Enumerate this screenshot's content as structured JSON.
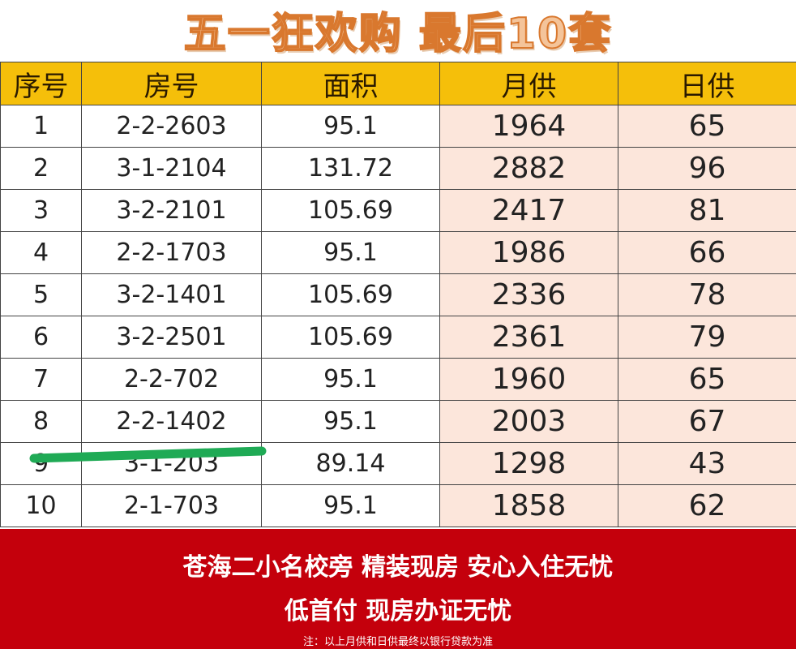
{
  "title": "五一狂欢购 最后10套",
  "table": {
    "headers": [
      "序号",
      "房号",
      "面积",
      "月供",
      "日供"
    ],
    "rows": [
      [
        "1",
        "2-2-2603",
        "95.1",
        "1964",
        "65"
      ],
      [
        "2",
        "3-1-2104",
        "131.72",
        "2882",
        "96"
      ],
      [
        "3",
        "3-2-2101",
        "105.69",
        "2417",
        "81"
      ],
      [
        "4",
        "2-2-1703",
        "95.1",
        "1986",
        "66"
      ],
      [
        "5",
        "3-2-1401",
        "105.69",
        "2336",
        "78"
      ],
      [
        "6",
        "3-2-2501",
        "105.69",
        "2361",
        "79"
      ],
      [
        "7",
        "2-2-702",
        "95.1",
        "1960",
        "65"
      ],
      [
        "8",
        "2-2-1402",
        "95.1",
        "2003",
        "67"
      ],
      [
        "9",
        "3-1-203",
        "89.14",
        "1298",
        "43"
      ],
      [
        "10",
        "2-1-703",
        "95.1",
        "1858",
        "62"
      ]
    ]
  },
  "footer": {
    "line1": "苍海二小名校旁 精装现房 安心入住无忧",
    "line2": "低首付 现房办证无忧",
    "note": "注：以上月供和日供最终以银行贷款为准"
  },
  "colors": {
    "header": "#f5bf0a",
    "footer": "#c4000c",
    "highlight": "#fce6db",
    "strike": "#1faa55"
  }
}
